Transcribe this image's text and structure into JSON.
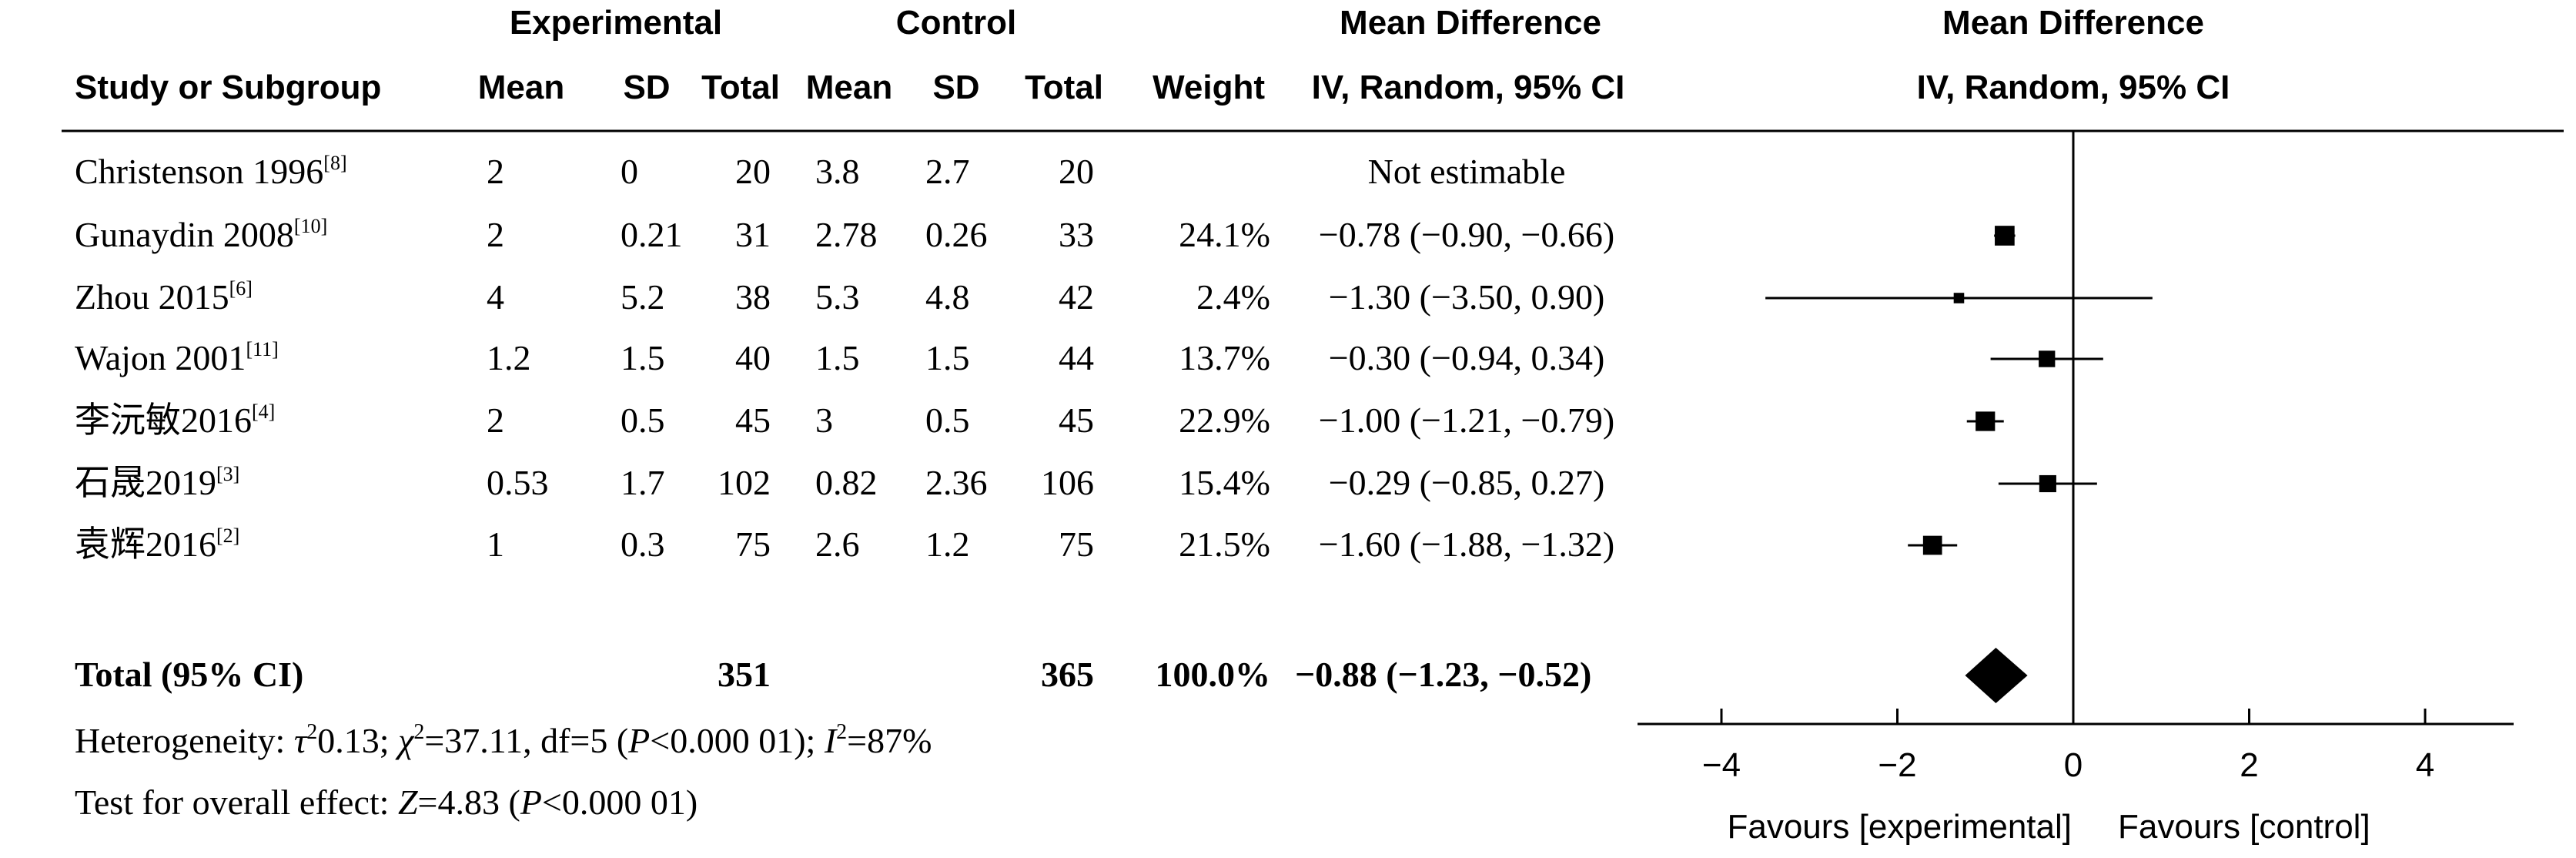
{
  "header": {
    "group_experimental": "Experimental",
    "group_control": "Control",
    "md_title": "Mean Difference",
    "plot_title": "Mean Difference",
    "col_study": "Study or Subgroup",
    "col_exp_mean": "Mean",
    "col_exp_sd": "SD",
    "col_exp_total": "Total",
    "col_ctl_mean": "Mean",
    "col_ctl_sd": "SD",
    "col_ctl_total": "Total",
    "col_weight": "Weight",
    "col_ci": "IV, Random, 95% CI",
    "plot_subtitle": "IV, Random, 95% CI"
  },
  "studies": [
    {
      "name": "Christenson 1996",
      "ref": "[8]",
      "exp_mean": "2",
      "exp_sd": "0",
      "exp_total": "20",
      "ctl_mean": "3.8",
      "ctl_sd": "2.7",
      "ctl_total": "20",
      "weight": "",
      "ci_text": "Not estimable"
    },
    {
      "name": "Gunaydin 2008",
      "ref": "[10]",
      "exp_mean": "2",
      "exp_sd": "0.21",
      "exp_total": "31",
      "ctl_mean": "2.78",
      "ctl_sd": "0.26",
      "ctl_total": "33",
      "weight": "24.1%",
      "ci_text": "−0.78 (−0.90, −0.66)"
    },
    {
      "name": "Zhou 2015",
      "ref": "[6]",
      "exp_mean": "4",
      "exp_sd": "5.2",
      "exp_total": "38",
      "ctl_mean": "5.3",
      "ctl_sd": "4.8",
      "ctl_total": "42",
      "weight": "2.4%",
      "ci_text": "−1.30 (−3.50, 0.90)"
    },
    {
      "name": "Wajon 2001",
      "ref": "[11]",
      "exp_mean": "1.2",
      "exp_sd": "1.5",
      "exp_total": "40",
      "ctl_mean": "1.5",
      "ctl_sd": "1.5",
      "ctl_total": "44",
      "weight": "13.7%",
      "ci_text": "−0.30 (−0.94, 0.34)"
    },
    {
      "name": "李沅敏2016",
      "ref": "[4]",
      "exp_mean": "2",
      "exp_sd": "0.5",
      "exp_total": "45",
      "ctl_mean": "3",
      "ctl_sd": "0.5",
      "ctl_total": "45",
      "weight": "22.9%",
      "ci_text": "−1.00 (−1.21, −0.79)"
    },
    {
      "name": "石晟2019",
      "ref": "[3]",
      "exp_mean": "0.53",
      "exp_sd": "1.7",
      "exp_total": "102",
      "ctl_mean": "0.82",
      "ctl_sd": "2.36",
      "ctl_total": "106",
      "weight": "15.4%",
      "ci_text": "−0.29 (−0.85, 0.27)"
    },
    {
      "name": "袁辉2016",
      "ref": "[2]",
      "exp_mean": "1",
      "exp_sd": "0.3",
      "exp_total": "75",
      "ctl_mean": "2.6",
      "ctl_sd": "1.2",
      "ctl_total": "75",
      "weight": "21.5%",
      "ci_text": "−1.60 (−1.88, −1.32)"
    }
  ],
  "total": {
    "label": "Total (95% CI)",
    "exp_total": "351",
    "ctl_total": "365",
    "weight": "100.0%",
    "ci_text": "−0.88 (−1.23, −0.52)"
  },
  "footer": {
    "het_text1": "Heterogeneity: ",
    "het_tau": "τ",
    "het_text2": "0.13; ",
    "het_chi": "χ",
    "het_text3": "=37.11, df=5 (",
    "het_p": "P",
    "het_text4": "<0.000 01); ",
    "het_i": "I",
    "het_text5": "=87%",
    "sup2": "2",
    "effect_text1": "Test for overall effect: ",
    "effect_z": "Z",
    "effect_text2": "=4.83 (",
    "effect_p": "P",
    "effect_text3": "<0.000 01)"
  },
  "chart_data": {
    "type": "forest",
    "x_ticks": [
      -4,
      -2,
      0,
      2,
      4
    ],
    "x_tick_labels": [
      "−4",
      "−2",
      "0",
      "2",
      "4"
    ],
    "xlim": [
      -5,
      5
    ],
    "favours_left": "Favours [experimental]",
    "favours_right": "Favours [control]",
    "studies": [
      {
        "study": "Christenson 1996",
        "md": null,
        "lower": null,
        "upper": null,
        "weight": null
      },
      {
        "study": "Gunaydin 2008",
        "md": -0.78,
        "lower": -0.9,
        "upper": -0.66,
        "weight": 24.1
      },
      {
        "study": "Zhou 2015",
        "md": -1.3,
        "lower": -3.5,
        "upper": 0.9,
        "weight": 2.4
      },
      {
        "study": "Wajon 2001",
        "md": -0.3,
        "lower": -0.94,
        "upper": 0.34,
        "weight": 13.7
      },
      {
        "study": "李沅敏2016",
        "md": -1.0,
        "lower": -1.21,
        "upper": -0.79,
        "weight": 22.9
      },
      {
        "study": "石晟2019",
        "md": -0.29,
        "lower": -0.85,
        "upper": 0.27,
        "weight": 15.4
      },
      {
        "study": "袁辉2016",
        "md": -1.6,
        "lower": -1.88,
        "upper": -1.32,
        "weight": 21.5
      }
    ],
    "pooled": {
      "md": -0.88,
      "lower": -1.23,
      "upper": -0.52
    }
  }
}
